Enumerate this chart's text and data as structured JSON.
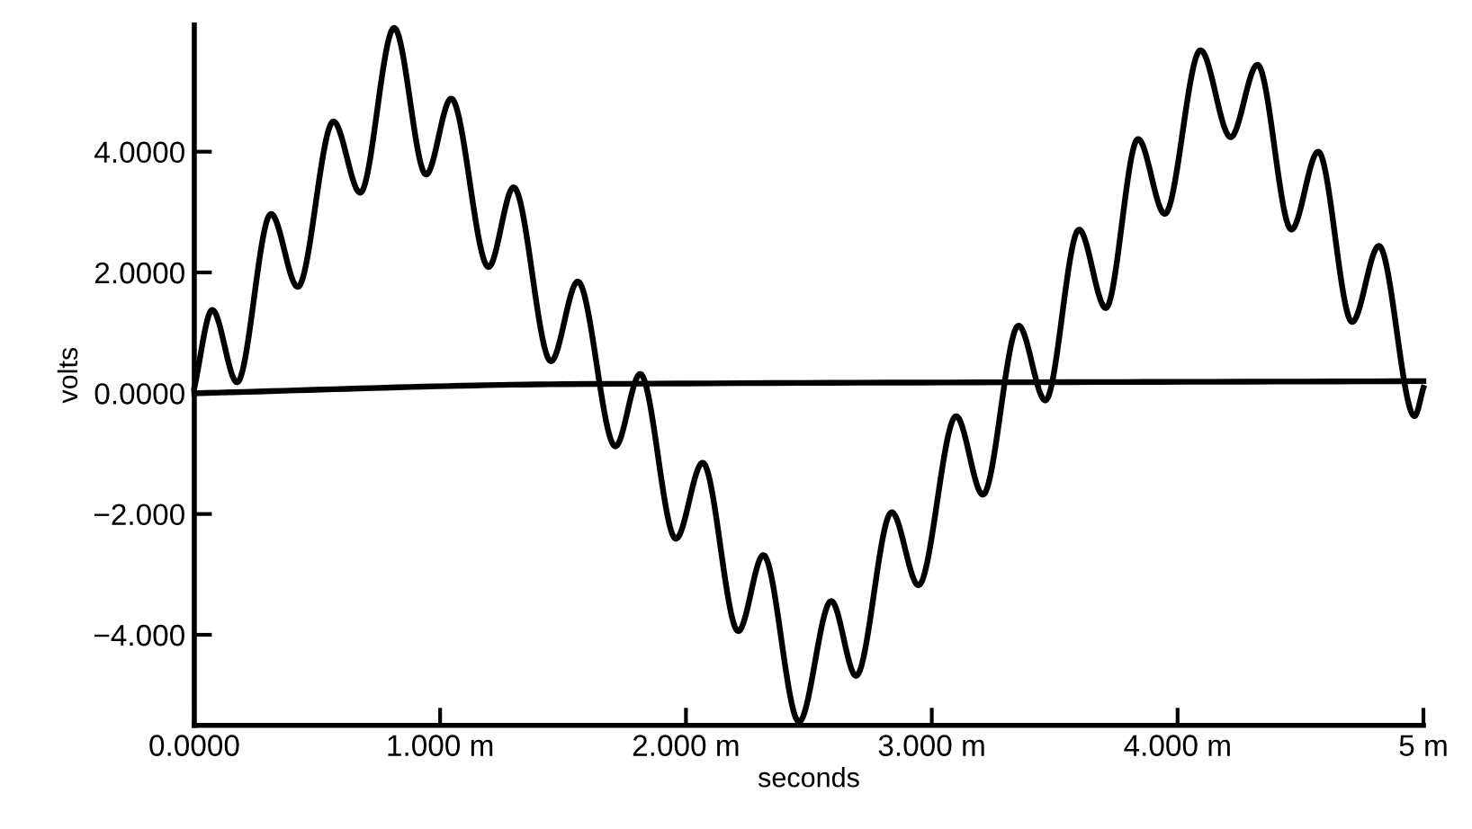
{
  "chart_data": {
    "type": "line",
    "xlabel": "seconds",
    "ylabel": "volts",
    "xlim": [
      0,
      5.0
    ],
    "ylim": [
      -5.5,
      6.1
    ],
    "xticks": [
      {
        "value": 0,
        "label": "0.0000"
      },
      {
        "value": 1,
        "label": "1.000 m"
      },
      {
        "value": 2,
        "label": "2.000 m"
      },
      {
        "value": 3,
        "label": "3.000 m"
      },
      {
        "value": 4,
        "label": "4.000 m"
      },
      {
        "value": 5,
        "label": "5 m"
      }
    ],
    "yticks": [
      {
        "value": -4,
        "label": "−4.000"
      },
      {
        "value": -2,
        "label": "−2.000"
      },
      {
        "value": 0,
        "label": "0.0000"
      },
      {
        "value": 2,
        "label": "2.0000"
      },
      {
        "value": 4,
        "label": "4.0000"
      }
    ],
    "grid": false,
    "marker": "none",
    "line_style": "solid",
    "series": [
      {
        "color": "#000000",
        "x": [
          0,
          0.073,
          0.174,
          0.312,
          0.421,
          0.566,
          0.675,
          0.813,
          0.943,
          1.045,
          1.197,
          1.299,
          1.451,
          1.56,
          1.713,
          1.814,
          1.959,
          2.068,
          2.213,
          2.315,
          2.46,
          2.591,
          2.692,
          2.837,
          2.946,
          3.099,
          3.208,
          3.353,
          3.462,
          3.599,
          3.708,
          3.839,
          3.948,
          4.093,
          4.216,
          4.325,
          4.463,
          4.572,
          4.71,
          4.819,
          4.964,
          5.0
        ],
        "values": [
          0.09,
          1.38,
          0.18,
          2.97,
          1.76,
          4.5,
          3.32,
          6.05,
          3.62,
          4.88,
          2.09,
          3.41,
          0.53,
          1.85,
          -0.88,
          0.32,
          -2.41,
          -1.15,
          -3.94,
          -2.68,
          -5.44,
          -3.44,
          -4.68,
          -1.97,
          -3.18,
          -0.38,
          -1.68,
          1.12,
          -0.12,
          2.71,
          1.41,
          4.21,
          2.97,
          5.68,
          4.24,
          5.44,
          2.71,
          4.0,
          1.18,
          2.44,
          -0.38,
          0.09
        ]
      },
      {
        "color": "#000000",
        "x": [
          0,
          1.5,
          5.0
        ],
        "values": [
          0.0,
          0.15,
          0.2
        ]
      }
    ]
  }
}
